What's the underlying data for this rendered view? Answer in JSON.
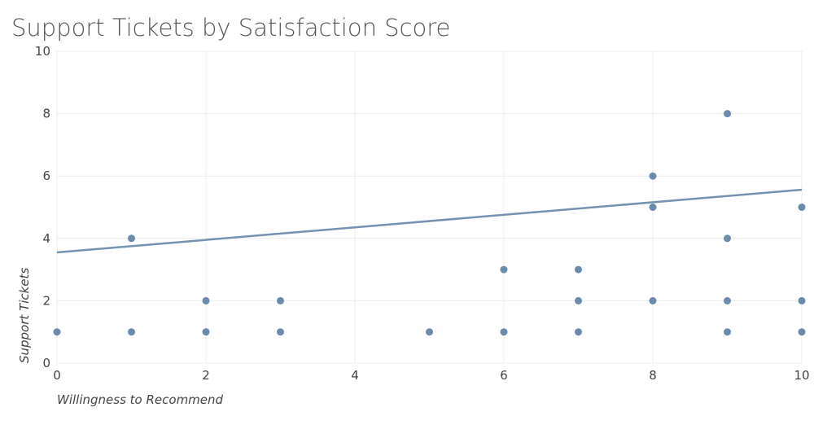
{
  "chart_data": {
    "type": "scatter",
    "title": "Support Tickets by Satisfaction Score",
    "x_label": "Willingness to Recommend",
    "y_label": "Support Tickets",
    "x": [
      0,
      1,
      1,
      2,
      2,
      3,
      3,
      5,
      6,
      6,
      7,
      7,
      7,
      8,
      8,
      8,
      9,
      9,
      9,
      9,
      10,
      10,
      10
    ],
    "values": [
      1,
      1,
      4,
      1,
      2,
      1,
      2,
      1,
      1,
      3,
      1,
      2,
      3,
      2,
      5,
      6,
      1,
      2,
      4,
      8,
      1,
      2,
      5
    ],
    "color": "#6a8bab",
    "trendline": {
      "x": [
        0,
        10
      ],
      "values": [
        3.55,
        5.56
      ],
      "color": "#7393b0"
    },
    "xlim": [
      0,
      10
    ],
    "ylim": [
      0,
      10
    ],
    "xticks": [
      0,
      2,
      4,
      6,
      8,
      10
    ],
    "yticks": [
      0,
      2,
      4,
      6,
      8,
      10
    ],
    "grid": true
  }
}
